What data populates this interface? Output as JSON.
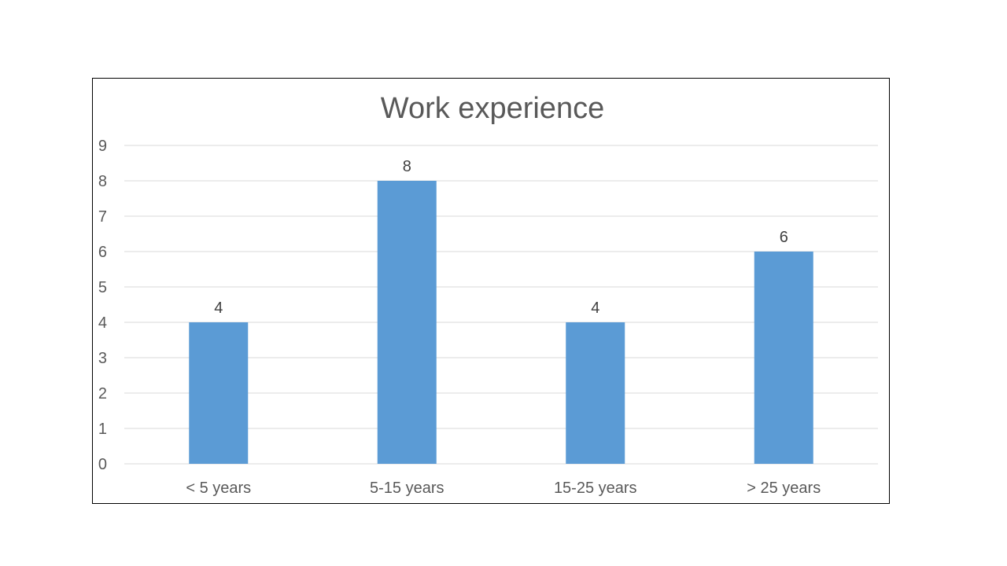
{
  "chart_data": {
    "type": "bar",
    "title": "Work experience",
    "categories": [
      "< 5 years",
      "5-15 years",
      "15-25 years",
      "> 25 years"
    ],
    "values": [
      4,
      8,
      4,
      6
    ],
    "xlabel": "",
    "ylabel": "",
    "ylim": [
      0,
      9
    ],
    "yticks": [
      0,
      1,
      2,
      3,
      4,
      5,
      6,
      7,
      8,
      9
    ],
    "data_labels": true,
    "grid": true,
    "legend": "none",
    "bar_color": "#5b9bd5",
    "grid_color": "#d9d9d9",
    "text_color": "#595959"
  }
}
